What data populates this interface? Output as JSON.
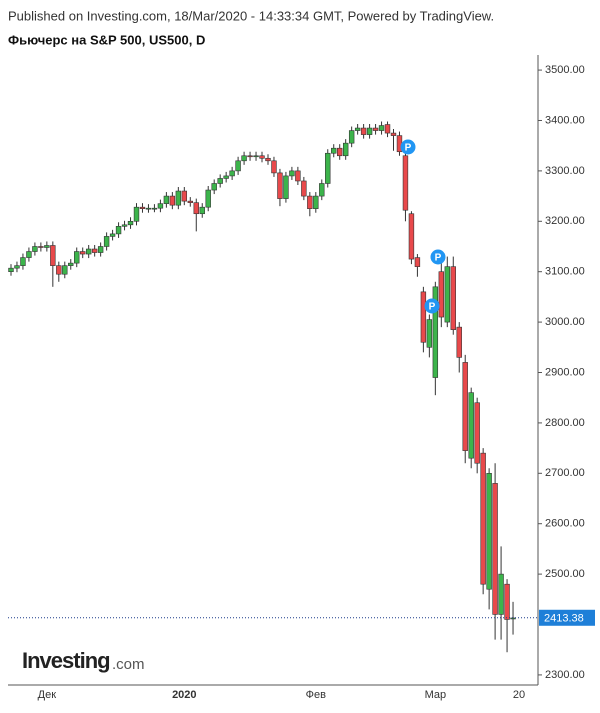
{
  "header": {
    "published": "Published on Investing.com, 18/Mar/2020 - 14:33:34 GMT, Powered by TradingView.",
    "instrument": "Фьючерс на S&P 500, US500, D"
  },
  "watermark": {
    "brand": "Investing",
    "suffix": ".com"
  },
  "event_markers": [
    "P",
    "P",
    "P"
  ],
  "chart_data": {
    "type": "candlestick",
    "categories": [
      null,
      null,
      null,
      null,
      null,
      null,
      "Дек",
      null,
      null,
      null,
      null,
      null,
      null,
      null,
      null,
      null,
      null,
      null,
      null,
      null,
      null,
      null,
      null,
      null,
      null,
      null,
      null,
      null,
      null,
      "2020",
      null,
      null,
      null,
      null,
      null,
      null,
      null,
      null,
      null,
      null,
      null,
      null,
      null,
      null,
      null,
      null,
      null,
      null,
      null,
      null,
      null,
      "Фев",
      null,
      null,
      null,
      null,
      null,
      null,
      null,
      null,
      null,
      null,
      null,
      null,
      null,
      null,
      null,
      null,
      null,
      null,
      null,
      "Мар",
      null,
      null,
      null,
      null,
      null,
      null,
      null,
      null,
      null,
      null,
      null,
      null,
      null,
      "20"
    ],
    "series": [
      {
        "up_color": "#3cb44b",
        "down_color": "#e8494b",
        "open": [
          3100,
          3107,
          3112,
          3128,
          3140,
          3150,
          3148,
          3152,
          3112,
          3095,
          3112,
          3117,
          3140,
          3135,
          3145,
          3138,
          3150,
          3170,
          3175,
          3190,
          3193,
          3200,
          3228,
          3225,
          3226,
          3226,
          3235,
          3250,
          3232,
          3260,
          3240,
          3237,
          3215,
          3228,
          3262,
          3275,
          3285,
          3290,
          3300,
          3320,
          3330,
          3328,
          3330,
          3325,
          3320,
          3296,
          3245,
          3290,
          3300,
          3280,
          3250,
          3225,
          3250,
          3275,
          3335,
          3345,
          3330,
          3355,
          3380,
          3385,
          3372,
          3385,
          3380,
          3392,
          3375,
          3370,
          3330,
          3215,
          3128,
          3060,
          2950,
          2890,
          3100,
          3000,
          3110,
          2990,
          2920,
          2730,
          2840,
          2740,
          2470,
          2680,
          2420,
          2480,
          2412,
          null
        ],
        "high": [
          3115,
          3120,
          3136,
          3148,
          3158,
          3158,
          3160,
          3160,
          3120,
          3120,
          3125,
          3148,
          3148,
          3153,
          3153,
          3158,
          3178,
          3183,
          3198,
          3201,
          3208,
          3236,
          3236,
          3234,
          3234,
          3243,
          3258,
          3258,
          3268,
          3268,
          3248,
          3245,
          3236,
          3270,
          3283,
          3293,
          3298,
          3308,
          3328,
          3338,
          3338,
          3338,
          3338,
          3333,
          3328,
          3304,
          3298,
          3308,
          3308,
          3288,
          3258,
          3258,
          3283,
          3343,
          3353,
          3353,
          3363,
          3388,
          3393,
          3393,
          3393,
          3393,
          3398,
          3398,
          3383,
          3378,
          3338,
          3220,
          3135,
          3070,
          3015,
          3080,
          3120,
          3130,
          3130,
          3000,
          2935,
          2870,
          2850,
          2750,
          2710,
          2720,
          2555,
          2490,
          2445,
          null
        ],
        "low": [
          3092,
          3099,
          3104,
          3120,
          3132,
          3140,
          3140,
          3070,
          3080,
          3087,
          3104,
          3109,
          3127,
          3127,
          3130,
          3130,
          3142,
          3162,
          3167,
          3182,
          3185,
          3192,
          3217,
          3217,
          3218,
          3218,
          3227,
          3224,
          3224,
          3232,
          3229,
          3180,
          3207,
          3220,
          3254,
          3267,
          3277,
          3282,
          3292,
          3312,
          3320,
          3320,
          3317,
          3312,
          3288,
          3230,
          3237,
          3282,
          3272,
          3242,
          3210,
          3217,
          3242,
          3267,
          3327,
          3322,
          3322,
          3347,
          3372,
          3364,
          3364,
          3372,
          3372,
          3367,
          3340,
          3330,
          3200,
          3115,
          3090,
          2940,
          2930,
          2855,
          2990,
          2990,
          2975,
          2900,
          2720,
          2710,
          2700,
          2460,
          2430,
          2370,
          2370,
          2345,
          2380,
          null
        ],
        "close": [
          3107,
          3112,
          3128,
          3140,
          3150,
          3148,
          3152,
          3112,
          3095,
          3112,
          3117,
          3140,
          3135,
          3145,
          3138,
          3150,
          3170,
          3175,
          3190,
          3193,
          3200,
          3228,
          3225,
          3226,
          3226,
          3235,
          3250,
          3232,
          3260,
          3240,
          3237,
          3215,
          3228,
          3262,
          3275,
          3285,
          3290,
          3300,
          3320,
          3330,
          3328,
          3330,
          3325,
          3320,
          3296,
          3245,
          3290,
          3300,
          3280,
          3250,
          3225,
          3250,
          3275,
          3335,
          3345,
          3330,
          3355,
          3380,
          3385,
          3372,
          3385,
          3380,
          3390,
          3375,
          3370,
          3338,
          3222,
          3125,
          3110,
          2960,
          3005,
          3070,
          3010,
          3110,
          2985,
          2930,
          2745,
          2860,
          2720,
          2480,
          2700,
          2420,
          2500,
          2410,
          2413,
          null
        ]
      }
    ],
    "ylim": [
      2280,
      3520
    ],
    "yticks": [
      {
        "value": 2300,
        "label": "2300.00"
      },
      {
        "value": 2500,
        "label": "2500.00"
      },
      {
        "value": 2600,
        "label": "2600.00"
      },
      {
        "value": 2700,
        "label": "2700.00"
      },
      {
        "value": 2800,
        "label": "2800.00"
      },
      {
        "value": 2900,
        "label": "2900.00"
      },
      {
        "value": 3000,
        "label": "3000.00"
      },
      {
        "value": 3100,
        "label": "3100.00"
      },
      {
        "value": 3200,
        "label": "3200.00"
      },
      {
        "value": 3300,
        "label": "3300.00"
      },
      {
        "value": 3400,
        "label": "3400.00"
      },
      {
        "value": 3500,
        "label": "3500.00"
      }
    ],
    "last_price": 2413.38,
    "last_price_color": "#1e7fd8"
  }
}
